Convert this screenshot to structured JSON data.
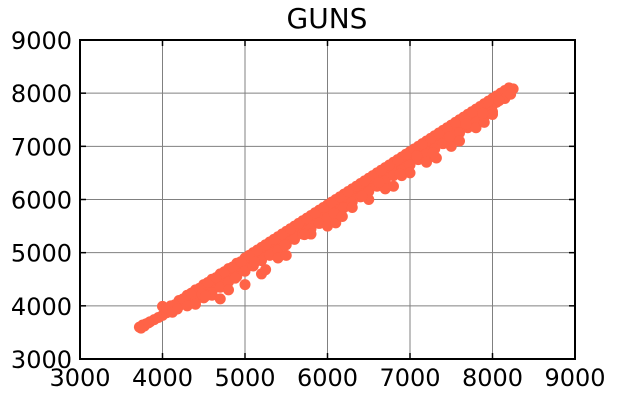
{
  "chart_data": {
    "type": "scatter",
    "title": "GUNS",
    "xlabel": "",
    "ylabel": "",
    "xlim": [
      3000,
      9000
    ],
    "ylim": [
      3000,
      9000
    ],
    "xticks": [
      3000,
      4000,
      5000,
      6000,
      7000,
      8000,
      9000
    ],
    "yticks": [
      3000,
      4000,
      5000,
      6000,
      7000,
      8000,
      9000
    ],
    "xtick_labels": [
      "3000",
      "4000",
      "5000",
      "6000",
      "7000",
      "8000",
      "9000"
    ],
    "ytick_labels": [
      "3000",
      "4000",
      "5000",
      "6000",
      "7000",
      "8000",
      "9000"
    ],
    "grid": true,
    "marker_color": "#FF6347",
    "series": [
      {
        "points": [
          [
            3720,
            3600
          ],
          [
            3760,
            3640
          ],
          [
            3800,
            3660
          ],
          [
            3850,
            3700
          ],
          [
            3900,
            3740
          ],
          [
            3950,
            3780
          ],
          [
            4000,
            3820
          ],
          [
            4050,
            3870
          ],
          [
            4100,
            3920
          ],
          [
            4150,
            3960
          ],
          [
            4200,
            4000
          ],
          [
            4250,
            4040
          ],
          [
            4300,
            4080
          ],
          [
            4350,
            4120
          ],
          [
            4400,
            4170
          ],
          [
            4450,
            4210
          ],
          [
            4500,
            4260
          ],
          [
            4550,
            4310
          ],
          [
            4600,
            4360
          ],
          [
            4650,
            4410
          ],
          [
            4700,
            4460
          ],
          [
            4750,
            4510
          ],
          [
            4800,
            4560
          ],
          [
            4850,
            4610
          ],
          [
            4900,
            4660
          ],
          [
            4950,
            4710
          ],
          [
            5000,
            4760
          ],
          [
            5050,
            4810
          ],
          [
            5100,
            4860
          ],
          [
            5150,
            4910
          ],
          [
            5200,
            4960
          ],
          [
            5250,
            5010
          ],
          [
            5300,
            5060
          ],
          [
            5350,
            5110
          ],
          [
            5400,
            5160
          ],
          [
            5450,
            5210
          ],
          [
            5500,
            5260
          ],
          [
            5550,
            5310
          ],
          [
            5600,
            5360
          ],
          [
            5650,
            5410
          ],
          [
            5700,
            5460
          ],
          [
            5750,
            5510
          ],
          [
            5800,
            5560
          ],
          [
            5850,
            5610
          ],
          [
            5900,
            5660
          ],
          [
            5950,
            5710
          ],
          [
            6000,
            5760
          ],
          [
            6050,
            5810
          ],
          [
            6100,
            5860
          ],
          [
            6150,
            5910
          ],
          [
            6200,
            5960
          ],
          [
            6250,
            6010
          ],
          [
            6300,
            6060
          ],
          [
            6350,
            6110
          ],
          [
            6400,
            6160
          ],
          [
            6450,
            6210
          ],
          [
            6500,
            6260
          ],
          [
            6550,
            6310
          ],
          [
            6600,
            6360
          ],
          [
            6650,
            6410
          ],
          [
            6700,
            6460
          ],
          [
            6750,
            6510
          ],
          [
            6800,
            6560
          ],
          [
            6850,
            6610
          ],
          [
            6900,
            6660
          ],
          [
            6950,
            6710
          ],
          [
            7000,
            6760
          ],
          [
            7050,
            6810
          ],
          [
            7100,
            6860
          ],
          [
            7150,
            6910
          ],
          [
            7200,
            6960
          ],
          [
            7250,
            7010
          ],
          [
            7300,
            7060
          ],
          [
            7350,
            7110
          ],
          [
            7400,
            7160
          ],
          [
            7450,
            7210
          ],
          [
            7500,
            7260
          ],
          [
            7550,
            7310
          ],
          [
            7600,
            7360
          ],
          [
            7650,
            7410
          ],
          [
            7700,
            7460
          ],
          [
            7750,
            7510
          ],
          [
            7800,
            7560
          ],
          [
            7850,
            7610
          ],
          [
            7900,
            7660
          ],
          [
            7950,
            7710
          ],
          [
            8000,
            7770
          ],
          [
            8050,
            7830
          ],
          [
            8100,
            7890
          ],
          [
            8150,
            7950
          ],
          [
            8200,
            8010
          ],
          [
            8230,
            8060
          ],
          [
            8250,
            8080
          ],
          [
            4000,
            3990
          ],
          [
            4100,
            4000
          ],
          [
            4200,
            4100
          ],
          [
            4300,
            4200
          ],
          [
            4400,
            4300
          ],
          [
            4500,
            4400
          ],
          [
            4600,
            4500
          ],
          [
            4700,
            4600
          ],
          [
            4800,
            4700
          ],
          [
            4900,
            4800
          ],
          [
            5000,
            4900
          ],
          [
            5100,
            5000
          ],
          [
            5200,
            5100
          ],
          [
            5300,
            5200
          ],
          [
            5400,
            5300
          ],
          [
            5500,
            5400
          ],
          [
            5600,
            5500
          ],
          [
            5700,
            5600
          ],
          [
            5800,
            5700
          ],
          [
            5900,
            5800
          ],
          [
            6000,
            5900
          ],
          [
            6100,
            6000
          ],
          [
            6200,
            6100
          ],
          [
            6300,
            6200
          ],
          [
            6400,
            6300
          ],
          [
            6500,
            6400
          ],
          [
            6600,
            6500
          ],
          [
            6700,
            6600
          ],
          [
            6800,
            6700
          ],
          [
            6900,
            6800
          ],
          [
            7000,
            6900
          ],
          [
            7100,
            7000
          ],
          [
            7200,
            7100
          ],
          [
            7300,
            7200
          ],
          [
            7400,
            7300
          ],
          [
            7500,
            7400
          ],
          [
            7600,
            7500
          ],
          [
            7700,
            7600
          ],
          [
            7800,
            7700
          ],
          [
            7900,
            7800
          ],
          [
            8000,
            7900
          ],
          [
            8100,
            8000
          ],
          [
            8200,
            8100
          ],
          [
            4050,
            3960
          ],
          [
            4150,
            4020
          ],
          [
            4250,
            4130
          ],
          [
            4350,
            4240
          ],
          [
            4450,
            4330
          ],
          [
            4550,
            4440
          ],
          [
            4650,
            4530
          ],
          [
            4750,
            4640
          ],
          [
            4850,
            4730
          ],
          [
            4950,
            4830
          ],
          [
            5050,
            4950
          ],
          [
            5150,
            5050
          ],
          [
            5250,
            5150
          ],
          [
            5350,
            5250
          ],
          [
            5450,
            5350
          ],
          [
            5550,
            5450
          ],
          [
            5650,
            5550
          ],
          [
            5750,
            5650
          ],
          [
            5850,
            5750
          ],
          [
            5950,
            5850
          ],
          [
            6050,
            5950
          ],
          [
            6150,
            6050
          ],
          [
            6250,
            6150
          ],
          [
            6350,
            6250
          ],
          [
            6450,
            6350
          ],
          [
            6550,
            6450
          ],
          [
            6650,
            6550
          ],
          [
            6750,
            6650
          ],
          [
            6850,
            6750
          ],
          [
            6950,
            6850
          ],
          [
            7050,
            6950
          ],
          [
            7150,
            7050
          ],
          [
            7250,
            7150
          ],
          [
            7350,
            7250
          ],
          [
            7450,
            7350
          ],
          [
            7550,
            7450
          ],
          [
            7650,
            7550
          ],
          [
            7750,
            7650
          ],
          [
            7850,
            7750
          ],
          [
            7950,
            7850
          ],
          [
            8050,
            7950
          ],
          [
            8150,
            8050
          ],
          [
            4300,
            4000
          ],
          [
            4400,
            4080
          ],
          [
            4500,
            4150
          ],
          [
            4600,
            4250
          ],
          [
            4700,
            4350
          ],
          [
            4800,
            4450
          ],
          [
            4900,
            4550
          ],
          [
            5000,
            4650
          ],
          [
            5100,
            4750
          ],
          [
            5200,
            4850
          ],
          [
            5300,
            4950
          ],
          [
            5400,
            5050
          ],
          [
            5500,
            5150
          ],
          [
            5600,
            5250
          ],
          [
            5700,
            5350
          ],
          [
            5800,
            5450
          ],
          [
            5900,
            5550
          ],
          [
            6000,
            5650
          ],
          [
            6100,
            5750
          ],
          [
            6200,
            5850
          ],
          [
            6300,
            5950
          ],
          [
            6400,
            6050
          ],
          [
            6500,
            6150
          ],
          [
            6600,
            6250
          ],
          [
            6700,
            6350
          ],
          [
            6800,
            6450
          ],
          [
            6900,
            6550
          ],
          [
            7000,
            6650
          ],
          [
            7100,
            6750
          ],
          [
            7200,
            6850
          ],
          [
            7300,
            6950
          ],
          [
            7400,
            7050
          ],
          [
            7500,
            7150
          ],
          [
            7600,
            7250
          ],
          [
            7700,
            7350
          ],
          [
            7800,
            7450
          ],
          [
            7900,
            7550
          ],
          [
            8000,
            7650
          ],
          [
            4400,
            4030
          ],
          [
            4600,
            4200
          ],
          [
            4700,
            4130
          ],
          [
            4800,
            4300
          ],
          [
            5000,
            4400
          ],
          [
            5200,
            4600
          ],
          [
            5250,
            4680
          ],
          [
            5400,
            4900
          ],
          [
            5500,
            4950
          ],
          [
            5800,
            5350
          ],
          [
            6000,
            5500
          ],
          [
            6100,
            5560
          ],
          [
            6300,
            5850
          ],
          [
            6500,
            6000
          ],
          [
            6700,
            6200
          ],
          [
            6800,
            6250
          ],
          [
            6900,
            6450
          ],
          [
            7000,
            6500
          ],
          [
            7200,
            6700
          ],
          [
            7300,
            6800
          ],
          [
            7320,
            6780
          ],
          [
            7500,
            7000
          ],
          [
            7600,
            7100
          ],
          [
            7800,
            7350
          ],
          [
            7900,
            7450
          ],
          [
            8000,
            7600
          ],
          [
            8150,
            7900
          ],
          [
            3740,
            3580
          ],
          [
            3780,
            3620
          ],
          [
            3830,
            3680
          ],
          [
            4120,
            3880
          ],
          [
            4180,
            3940
          ],
          [
            4480,
            4220
          ],
          [
            4520,
            4180
          ],
          [
            4880,
            4520
          ],
          [
            5120,
            4820
          ],
          [
            5480,
            5140
          ],
          [
            5720,
            5340
          ],
          [
            6080,
            5740
          ],
          [
            6180,
            5680
          ],
          [
            6420,
            6060
          ],
          [
            6620,
            6320
          ],
          [
            6880,
            6480
          ],
          [
            7080,
            6820
          ],
          [
            7280,
            6880
          ],
          [
            7480,
            7180
          ],
          [
            7680,
            7420
          ],
          [
            7880,
            7620
          ],
          [
            8080,
            7860
          ],
          [
            8220,
            7980
          ]
        ]
      }
    ]
  }
}
